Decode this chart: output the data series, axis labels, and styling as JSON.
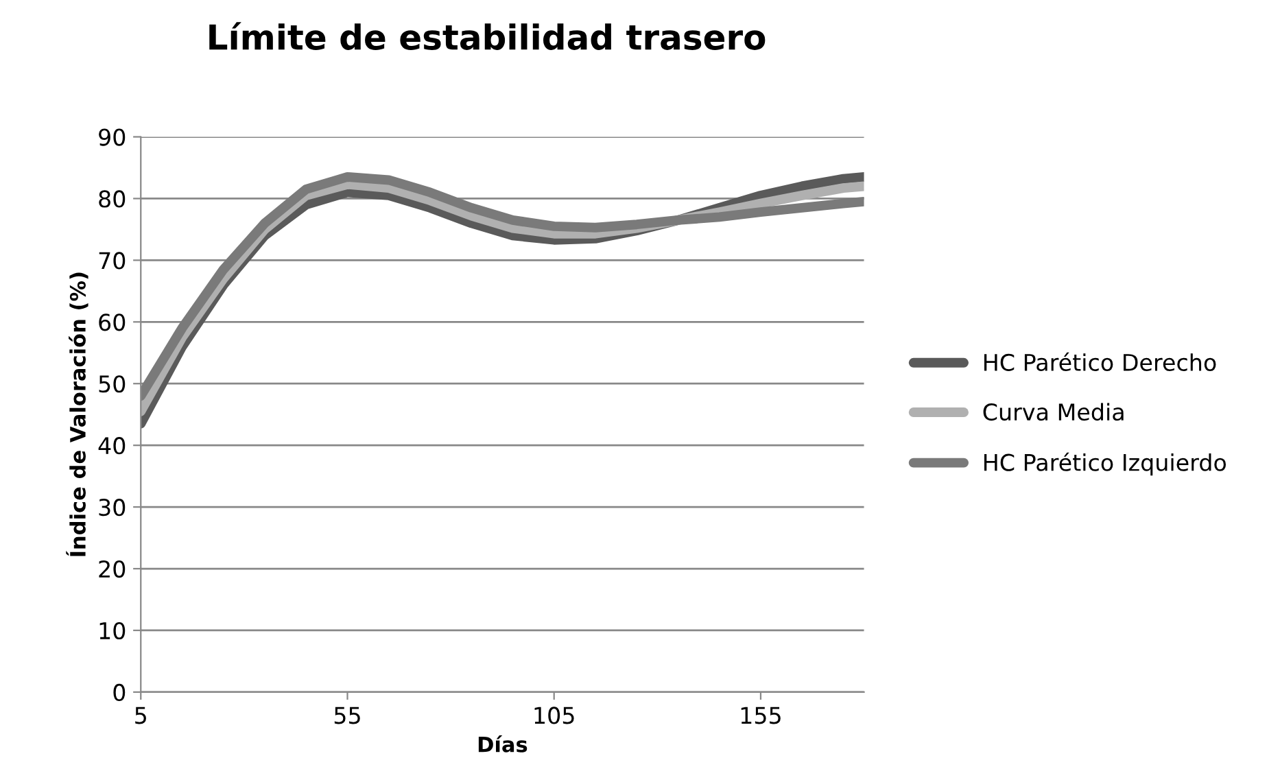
{
  "chart_data": {
    "type": "line",
    "title": "Límite de estabilidad trasero",
    "xlabel": "Días",
    "ylabel": "Índice de Valoración (%)",
    "x": [
      5,
      15,
      25,
      35,
      45,
      55,
      65,
      75,
      85,
      95,
      105,
      115,
      125,
      135,
      145,
      155,
      165,
      175,
      180
    ],
    "series": [
      {
        "name": "HC Parético Derecho",
        "color": "#5a5a5a",
        "values": [
          43.5,
          56,
          66,
          74,
          79,
          81,
          80.5,
          78.5,
          76,
          74,
          73.3,
          73.5,
          74.8,
          76.5,
          78.5,
          80.5,
          82,
          83.2,
          83.5
        ]
      },
      {
        "name": "Curva Media",
        "color": "#b0b0b0",
        "values": [
          45.5,
          57.5,
          67,
          75,
          80.5,
          82.3,
          81.7,
          79.7,
          77.2,
          75.2,
          74.3,
          74.3,
          75.2,
          76.5,
          77.8,
          79.2,
          80.5,
          81.7,
          82
        ]
      },
      {
        "name": "HC Parético Izquierdo",
        "color": "#7a7a7a",
        "values": [
          48,
          59,
          68.5,
          76,
          81.5,
          83.5,
          83,
          81,
          78.5,
          76.5,
          75.5,
          75.3,
          75.8,
          76.5,
          77,
          77.8,
          78.5,
          79.2,
          79.5
        ]
      }
    ],
    "xlim": [
      5,
      180
    ],
    "xticks": [
      5,
      55,
      105,
      155
    ],
    "ylim": [
      0,
      90
    ],
    "yticks": [
      0,
      10,
      20,
      30,
      40,
      50,
      60,
      70,
      80,
      90
    ],
    "grid": "y",
    "legend": "right",
    "marker": "none",
    "line_style": "solid"
  }
}
